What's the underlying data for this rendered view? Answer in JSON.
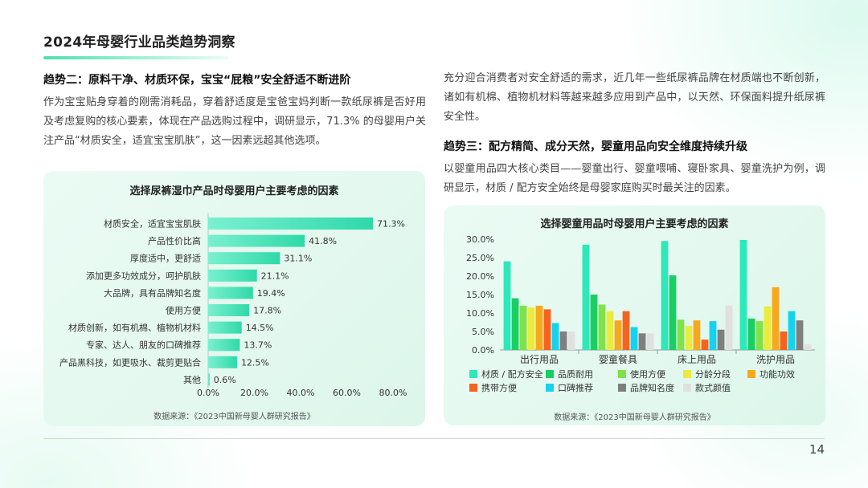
{
  "header": {
    "title": "2024年母婴行业品类趋势洞察"
  },
  "section2": {
    "heading": "趋势二：原料干净、材质环保，宝宝“屁粮”安全舒适不断进阶",
    "para1": "作为宝宝贴身穿着的刚需消耗品，穿着舒适度是宝爸宝妈判断一款纸尿裤是否好用及考虑复购的核心要素，体现在产品选购过程中，调研显示，71.3% 的母婴用户关注产品“材质安全，适宜宝宝肌肤”，这一因素远超其他选项。",
    "para2": "充分迎合消费者对安全舒适的需求，近几年一些纸尿裤品牌在材质端也不断创新，诸如有机棉、植物机材料等越来越多应用到产品中，以天然、环保面料提升纸尿裤安全性。"
  },
  "section3": {
    "heading": "趋势三：配方精简、成分天然，婴童用品向安全维度持续升级",
    "para": "以婴童用品四大核心类目——婴童出行、婴童喂哺、寝卧家具、婴童洗护为例，调研显示，材质 / 配方安全始终是母婴家庭购买时最关注的因素。"
  },
  "chart1_meta": {
    "title": "选择尿裤湿巾产品时母婴用户主要考虑的因素",
    "source": "数据来源：《2023中国新母婴人群研究报告》",
    "bar_color_start": "#7af0cf",
    "bar_color_end": "#2fd9a8"
  },
  "chart2_meta": {
    "title": "选择婴童用品时母婴用户主要考虑的因素",
    "source": "数据来源：《2023中国新母婴人群研究报告》"
  },
  "chart_data": [
    {
      "type": "bar",
      "orientation": "horizontal",
      "title": "选择尿裤湿巾产品时母婴用户主要考虑的因素",
      "categories": [
        "材质安全，适宜宝宝肌肤",
        "产品性价比高",
        "厚度适中，更舒适",
        "添加更多功效成分，呵护肌肤",
        "大品牌，具有品牌知名度",
        "使用方便",
        "材质创新，如有机棉、植物机材料",
        "专家、达人、朋友的口碑推荐",
        "产品黑科技，如更吸水、裁剪更贴合",
        "其他"
      ],
      "values": [
        71.3,
        41.8,
        31.1,
        21.1,
        19.4,
        17.8,
        14.5,
        13.7,
        12.5,
        0.6
      ],
      "value_labels": [
        "71.3%",
        "41.8%",
        "31.1%",
        "21.1%",
        "19.4%",
        "17.8%",
        "14.5%",
        "13.7%",
        "12.5%",
        "0.6%"
      ],
      "xlim": [
        0,
        80
      ],
      "xticks": [
        0,
        20,
        40,
        60,
        80
      ],
      "xtick_labels": [
        "0.0%",
        "20.0%",
        "40.0%",
        "60.0%",
        "80.0%"
      ],
      "grid": false
    },
    {
      "type": "bar",
      "orientation": "vertical",
      "title": "选择婴童用品时母婴用户主要考虑的因素",
      "categories": [
        "出行用品",
        "婴童餐具",
        "床上用品",
        "洗护用品"
      ],
      "ylim": [
        0,
        30
      ],
      "yticks": [
        0,
        5,
        10,
        15,
        20,
        25,
        30
      ],
      "ytick_labels": [
        "0.0%",
        "5.0%",
        "10.0%",
        "15.0%",
        "20.0%",
        "25.0%",
        "30.0%"
      ],
      "legend": "bottom",
      "series": [
        {
          "name": "材质 / 配方安全",
          "color": "#2de8b8",
          "values": [
            24.0,
            28.5,
            29.5,
            29.8
          ]
        },
        {
          "name": "品质耐用",
          "color": "#19cf63",
          "values": [
            14.0,
            15.0,
            20.2,
            8.5
          ]
        },
        {
          "name": "使用方便",
          "color": "#7fe24a",
          "values": [
            12.0,
            12.3,
            8.2,
            7.8
          ]
        },
        {
          "name": "分龄分段",
          "color": "#e9ec3c",
          "values": [
            11.5,
            10.5,
            6.5,
            11.8
          ]
        },
        {
          "name": "功能功效",
          "color": "#f6a81e",
          "values": [
            12.0,
            8.0,
            8.0,
            17.0
          ]
        },
        {
          "name": "携带方便",
          "color": "#f5631f",
          "values": [
            11.0,
            10.5,
            2.8,
            5.0
          ]
        },
        {
          "name": "口碑推荐",
          "color": "#16d2ee",
          "values": [
            7.3,
            6.2,
            7.8,
            10.5
          ]
        },
        {
          "name": "品牌知名度",
          "color": "#7f7f7f",
          "values": [
            5.0,
            4.5,
            5.5,
            8.0
          ]
        },
        {
          "name": "款式颜值",
          "color": "#e0e0e0",
          "values": [
            5.0,
            4.5,
            12.0,
            1.5
          ]
        }
      ]
    }
  ],
  "footer": {
    "page_number": "14"
  }
}
